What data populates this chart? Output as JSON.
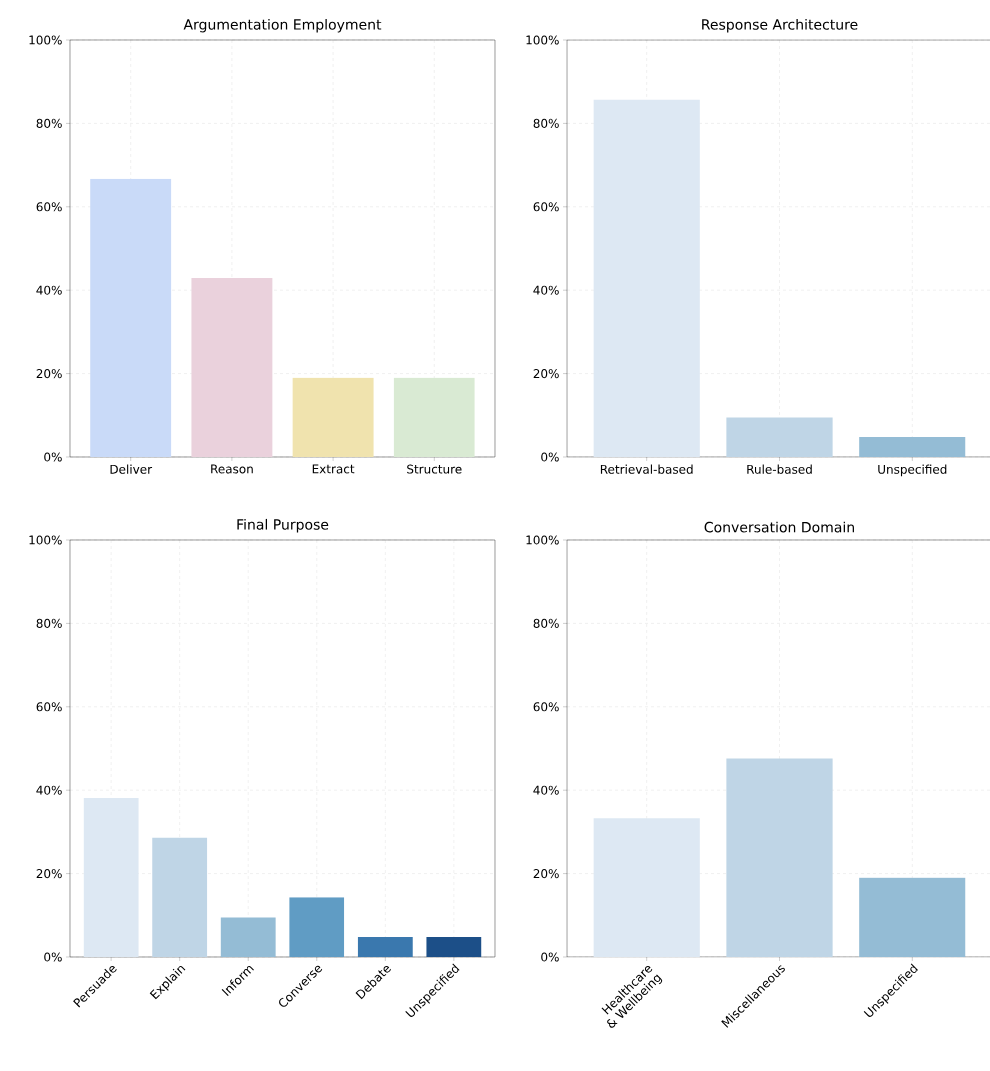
{
  "chart_data": [
    {
      "type": "bar",
      "title": "Argumentation Employment",
      "categories": [
        "Deliver",
        "Reason",
        "Extract",
        "Structure"
      ],
      "values": [
        66.7,
        42.9,
        19.0,
        19.0
      ],
      "colors": [
        "#c9daf8",
        "#ead1dc",
        "#f0e3ae",
        "#d9ead3"
      ],
      "ylim": [
        0,
        100
      ],
      "yticks": [
        {
          "value": 0,
          "label": "0%"
        },
        {
          "value": 20,
          "label": "20%"
        },
        {
          "value": 40,
          "label": "40%"
        },
        {
          "value": 60,
          "label": "60%"
        },
        {
          "value": 80,
          "label": "80%"
        },
        {
          "value": 100,
          "label": "100%"
        }
      ],
      "grid": true
    },
    {
      "type": "bar",
      "title": "Response Architecture",
      "categories": [
        "Retrieval-based",
        "Rule-based",
        "Unspecified"
      ],
      "values": [
        85.7,
        9.5,
        4.8
      ],
      "colors": [
        "#dde8f3",
        "#bfd5e6",
        "#94bcd5"
      ],
      "ylim": [
        0,
        100
      ],
      "yticks": [
        {
          "value": 0,
          "label": "0%"
        },
        {
          "value": 20,
          "label": "20%"
        },
        {
          "value": 40,
          "label": "40%"
        },
        {
          "value": 60,
          "label": "60%"
        },
        {
          "value": 80,
          "label": "80%"
        },
        {
          "value": 100,
          "label": "100%"
        }
      ],
      "grid": true
    },
    {
      "type": "bar",
      "title": "Final Purpose",
      "categories": [
        "Persuade",
        "Explain",
        "Inform",
        "Converse",
        "Debate",
        "Unspecified"
      ],
      "values": [
        38.1,
        28.6,
        9.5,
        14.3,
        4.8,
        4.8
      ],
      "colors": [
        "#dde8f3",
        "#bfd5e6",
        "#94bcd5",
        "#609cc4",
        "#3a78ae",
        "#1c4f88"
      ],
      "ylim": [
        0,
        100
      ],
      "yticks": [
        {
          "value": 0,
          "label": "0%"
        },
        {
          "value": 20,
          "label": "20%"
        },
        {
          "value": 40,
          "label": "40%"
        },
        {
          "value": 60,
          "label": "60%"
        },
        {
          "value": 80,
          "label": "80%"
        },
        {
          "value": 100,
          "label": "100%"
        }
      ],
      "grid": true
    },
    {
      "type": "bar",
      "title": "Conversation Domain",
      "categories": [
        "Healthcare & Wellbeing",
        "Miscellaneous",
        "Unspecified"
      ],
      "values": [
        33.3,
        47.6,
        19.0
      ],
      "colors": [
        "#dde8f3",
        "#bfd5e6",
        "#94bcd5"
      ],
      "ylim": [
        0,
        100
      ],
      "yticks": [
        {
          "value": 0,
          "label": "0%"
        },
        {
          "value": 20,
          "label": "20%"
        },
        {
          "value": 40,
          "label": "40%"
        },
        {
          "value": 60,
          "label": "60%"
        },
        {
          "value": 80,
          "label": "80%"
        },
        {
          "value": 100,
          "label": "100%"
        }
      ],
      "grid": true
    }
  ]
}
